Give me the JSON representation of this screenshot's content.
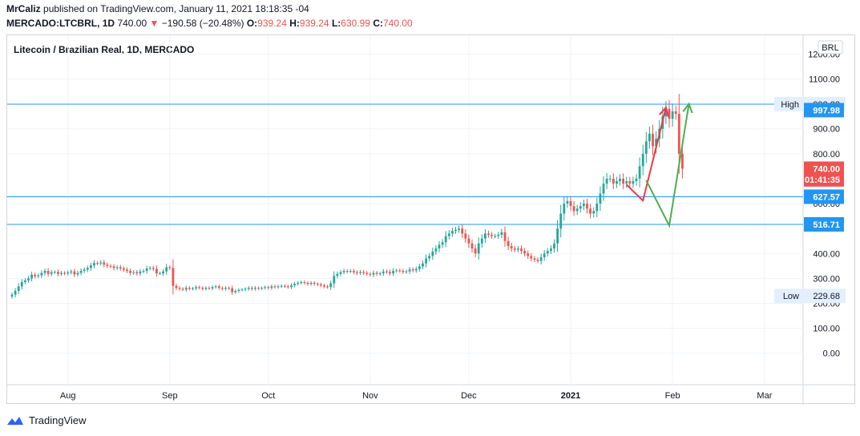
{
  "header": {
    "author": "MrCaliz",
    "published": "published on TradingView.com, January 11, 2021 18:18:35 -04",
    "symbol": "MERCADO:LTCBRL, 1D",
    "last": "740.00",
    "change": "−190.58 (−20.48%)",
    "o_label": "O:",
    "o_value": "939.24",
    "h_label": "H:",
    "h_value": "939.24",
    "l_label": "L:",
    "l_value": "630.99",
    "c_label": "C:",
    "c_value": "740.00"
  },
  "footer": {
    "brand": "TradingView"
  },
  "colors": {
    "up": "#26a69a",
    "down": "#ef5350",
    "line": "#2196f3",
    "text": "#131722",
    "arrow_red": "#f23645",
    "arrow_green": "#4caf50"
  },
  "chart_data": {
    "type": "candlestick",
    "title": "Litecoin / Brazilian Real, 1D, MERCADO",
    "currency_badge": "BRL",
    "ylim": [
      -40,
      1260
    ],
    "y_ticks": [
      "1200.00",
      "1100.00",
      "900.00",
      "800.00",
      "600.00",
      "500.00",
      "400.00",
      "300.00",
      "200.00",
      "100.00",
      "0.00"
    ],
    "y_tick_values": [
      1200,
      1100,
      900,
      800,
      600,
      500,
      400,
      300,
      200,
      100,
      0
    ],
    "x_ticks": [
      {
        "label": "Aug",
        "date": "2020-08-01",
        "bold": false
      },
      {
        "label": "Sep",
        "date": "2020-09-01",
        "bold": false
      },
      {
        "label": "Oct",
        "date": "2020-10-01",
        "bold": false
      },
      {
        "label": "Nov",
        "date": "2020-11-01",
        "bold": false
      },
      {
        "label": "Dec",
        "date": "2020-12-01",
        "bold": false
      },
      {
        "label": "2021",
        "date": "2021-01-01",
        "bold": true
      },
      {
        "label": "Feb",
        "date": "2021-02-01",
        "bold": false
      },
      {
        "label": "Mar",
        "date": "2021-03-01",
        "bold": false
      }
    ],
    "start_date": "2020-07-15",
    "horizontal_lines": [
      998.88,
      627.57,
      516.71
    ],
    "price_labels": [
      {
        "text": "High",
        "value": "998.88",
        "y": 998.88,
        "style": "tag"
      },
      {
        "text": "",
        "value": "997.98",
        "y": 975,
        "style": "blue"
      },
      {
        "text": "",
        "value": "740.00",
        "y": 740,
        "style": "red"
      },
      {
        "text": "",
        "value": "01:41:35",
        "y": 697,
        "style": "red"
      },
      {
        "text": "",
        "value": "627.57",
        "y": 627.57,
        "style": "blue"
      },
      {
        "text": "",
        "value": "516.71",
        "y": 516.71,
        "style": "blue"
      },
      {
        "text": "Low",
        "value": "229.68",
        "y": 229.68,
        "style": "tag"
      }
    ],
    "closes": [
      235,
      250,
      268,
      285,
      292,
      300,
      315,
      308,
      312,
      322,
      330,
      318,
      325,
      326,
      318,
      322,
      320,
      324,
      328,
      316,
      322,
      330,
      335,
      342,
      352,
      362,
      360,
      364,
      355,
      350,
      348,
      342,
      345,
      340,
      335,
      330,
      322,
      325,
      320,
      328,
      330,
      340,
      342,
      338,
      320,
      320,
      328,
      345,
      342,
      270,
      262,
      258,
      255,
      262,
      258,
      260,
      265,
      262,
      258,
      262,
      260,
      265,
      268,
      262,
      258,
      262,
      260,
      245,
      250,
      254,
      255,
      258,
      262,
      258,
      262,
      260,
      262,
      265,
      262,
      268,
      265,
      268,
      270,
      268,
      265,
      272,
      278,
      282,
      285,
      282,
      278,
      282,
      278,
      276,
      272,
      268,
      265,
      280,
      310,
      318,
      325,
      330,
      328,
      330,
      325,
      322,
      326,
      322,
      318,
      315,
      322,
      318,
      320,
      328,
      326,
      320,
      330,
      332,
      330,
      326,
      328,
      336,
      332,
      338,
      348,
      360,
      380,
      390,
      408,
      420,
      435,
      445,
      470,
      480,
      490,
      495,
      500,
      480,
      460,
      440,
      420,
      400,
      440,
      460,
      480,
      475,
      470,
      470,
      475,
      485,
      450,
      430,
      420,
      415,
      420,
      410,
      400,
      390,
      380,
      375,
      370,
      385,
      400,
      410,
      420,
      440,
      500,
      560,
      600,
      610,
      590,
      570,
      580,
      590,
      600,
      580,
      560,
      570,
      600,
      640,
      680,
      700,
      700,
      680,
      690,
      700,
      680,
      690,
      680,
      690,
      700,
      750,
      800,
      850,
      880,
      830,
      860,
      900,
      950,
      980,
      940,
      970,
      960,
      800,
      740
    ],
    "annotations": [
      {
        "type": "arrow",
        "color": "red",
        "points": [
          [
            "2021-01-18",
            676
          ],
          [
            "2021-01-23",
            612
          ],
          [
            "2021-01-30",
            985
          ]
        ]
      },
      {
        "type": "arrow",
        "color": "green",
        "points": [
          [
            "2021-01-24",
            693
          ],
          [
            "2021-01-31",
            512
          ],
          [
            "2021-02-06",
            1000
          ]
        ]
      }
    ]
  }
}
